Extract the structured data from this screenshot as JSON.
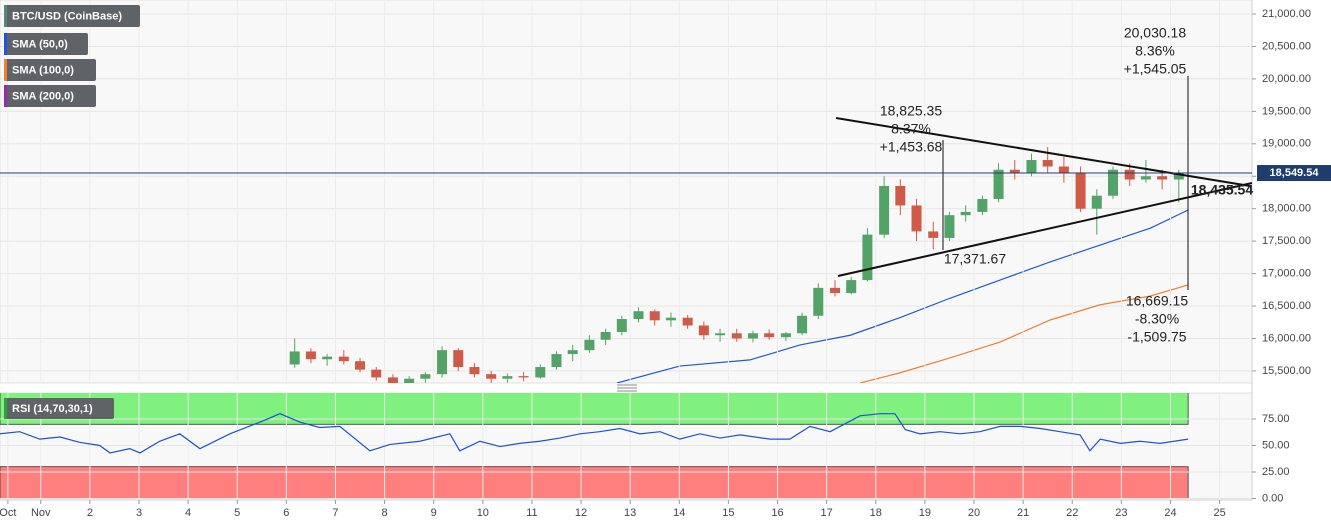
{
  "chart_data": [
    {
      "type": "candlestick",
      "name": "BTC/USD (CoinBase)",
      "legend_color": "#4e8b78",
      "up_color": "#53a367",
      "down_color": "#d05a48",
      "x": [
        6.17,
        6.5,
        6.83,
        7.17,
        7.5,
        7.83,
        8.17,
        8.5,
        8.83,
        9.17,
        9.5,
        9.83,
        10.17,
        10.5,
        10.83,
        11.17,
        11.5,
        11.83,
        12.17,
        12.5,
        12.83,
        13.17,
        13.5,
        13.83,
        14.17,
        14.5,
        14.83,
        15.17,
        15.5,
        15.83,
        16.17,
        16.5,
        16.83,
        17.17,
        17.5,
        17.83,
        18.17,
        18.5,
        18.83,
        19.17,
        19.5,
        19.83,
        20.17,
        20.5,
        20.83,
        21.17,
        21.5,
        21.83,
        22.17,
        22.5,
        22.83,
        23.17,
        23.5,
        23.83,
        24.17
      ],
      "open": [
        15600,
        15800,
        15680,
        15720,
        15650,
        15520,
        15400,
        15300,
        15380,
        15450,
        15820,
        15560,
        15450,
        15380,
        15420,
        15400,
        15560,
        15760,
        15820,
        15980,
        16100,
        16300,
        16420,
        16280,
        16320,
        16200,
        16050,
        16080,
        16000,
        16080,
        16020,
        16080,
        16350,
        16780,
        16700,
        16900,
        17600,
        18350,
        18050,
        17650,
        17550,
        17900,
        17950,
        18150,
        18600,
        18550,
        18750,
        18650,
        18550,
        18000,
        18200,
        18600,
        18450,
        18500,
        18450
      ],
      "high": [
        16000,
        15850,
        15760,
        15820,
        15700,
        15560,
        15450,
        15420,
        15480,
        15880,
        15850,
        15620,
        15500,
        15460,
        15480,
        15600,
        15800,
        15900,
        16050,
        16150,
        16350,
        16480,
        16450,
        16400,
        16360,
        16260,
        16150,
        16150,
        16120,
        16140,
        16100,
        16400,
        16850,
        16900,
        16950,
        17700,
        18500,
        18450,
        18150,
        17800,
        17950,
        18050,
        18200,
        18700,
        18750,
        18850,
        18950,
        18800,
        18650,
        18300,
        18650,
        18700,
        18750,
        18600,
        18600
      ],
      "low": [
        15550,
        15620,
        15580,
        15600,
        15480,
        15350,
        15250,
        15220,
        15320,
        15400,
        15500,
        15400,
        15300,
        15320,
        15340,
        15380,
        15520,
        15650,
        15780,
        15900,
        16050,
        16250,
        16200,
        16180,
        16150,
        15980,
        15950,
        15950,
        15940,
        15980,
        15960,
        16050,
        16300,
        16650,
        16680,
        16880,
        17550,
        17900,
        17500,
        17371.67,
        17500,
        17800,
        17900,
        18100,
        18450,
        18500,
        18550,
        18400,
        17950,
        17600,
        18150,
        18350,
        18400,
        18300,
        18100
      ],
      "close": [
        15800,
        15680,
        15720,
        15650,
        15520,
        15400,
        15300,
        15380,
        15450,
        15820,
        15560,
        15450,
        15380,
        15420,
        15400,
        15560,
        15760,
        15820,
        15980,
        16100,
        16300,
        16420,
        16280,
        16320,
        16200,
        16050,
        16080,
        16000,
        16080,
        16020,
        16080,
        16350,
        16780,
        16700,
        16900,
        17600,
        18350,
        18050,
        17650,
        17550,
        17900,
        17950,
        18150,
        18600,
        18550,
        18750,
        18650,
        18550,
        18000,
        18200,
        18600,
        18450,
        18500,
        18450,
        18549.54
      ],
      "overlays": [
        {
          "name": "SMA (50,0)",
          "color": "#2157d9",
          "x": [
            12.73,
            14.01,
            15.44,
            16.46,
            17.48,
            18.49,
            19.51,
            20.53,
            21.55,
            22.57,
            23.59,
            24.36
          ],
          "values": [
            15314,
            15575,
            15670,
            15900,
            16050,
            16320,
            16620,
            16900,
            17180,
            17440,
            17700,
            17980
          ]
        },
        {
          "name": "SMA (100,0)",
          "color": "#f0802d",
          "x": [
            17.68,
            18.49,
            19.51,
            20.53,
            21.55,
            22.57,
            23.59,
            24.36
          ],
          "values": [
            15314,
            15470,
            15700,
            15945,
            16285,
            16520,
            16655,
            16825
          ]
        },
        {
          "name": "SMA (200,0)",
          "color": "#9c27b0"
        }
      ],
      "price_line": {
        "value": 18549.54,
        "label": "18,549.54",
        "color": "#1f3c6e"
      },
      "annotations": [
        "20,030.18",
        "8.36%",
        "+1,545.05",
        "18,825.35",
        "8.37%",
        "+1,453.68",
        "17,371.67",
        "16,669.15",
        "-8.30%",
        "-1,509.75",
        "18,435.54"
      ],
      "xlim": [
        0.17,
        25.66
      ],
      "ylim": [
        15314,
        21216
      ],
      "yticks": [
        {
          "value": 15500,
          "label": "15,500.00"
        },
        {
          "value": 16000,
          "label": "16,000.00"
        },
        {
          "value": 16500,
          "label": "16,500.00"
        },
        {
          "value": 17000,
          "label": "17,000.00"
        },
        {
          "value": 17500,
          "label": "17,500.00"
        },
        {
          "value": 18000,
          "label": "18,000.00"
        },
        {
          "value": 18500,
          "label": "18,500.00"
        },
        {
          "value": 19000,
          "label": "19,000.00"
        },
        {
          "value": 19500,
          "label": "19,500.00"
        },
        {
          "value": 20000,
          "label": "20,000.00"
        },
        {
          "value": 20500,
          "label": "20,500.00"
        },
        {
          "value": 21000,
          "label": "21,000.00"
        }
      ],
      "grid": true
    },
    {
      "type": "line",
      "series": [
        {
          "name": "RSI (14,70,30,1)",
          "color": "#1e4fd8",
          "legend_color": "#2e9e3e",
          "x": [
            0.16,
            0.57,
            0.98,
            1.39,
            1.79,
            2.2,
            2.41,
            2.81,
            3.02,
            3.42,
            3.83,
            4.24,
            4.85,
            5.46,
            5.87,
            6.28,
            6.68,
            7.09,
            7.7,
            8.11,
            8.72,
            9.33,
            9.53,
            9.94,
            10.35,
            10.75,
            11.16,
            11.57,
            11.98,
            12.38,
            12.79,
            13.2,
            13.61,
            14.01,
            14.42,
            14.83,
            15.24,
            15.85,
            16.25,
            16.66,
            17.07,
            17.68,
            18.09,
            18.39,
            18.6,
            18.9,
            19.31,
            19.72,
            20.12,
            20.53,
            20.94,
            21.35,
            21.75,
            22.16,
            22.36,
            22.57,
            22.98,
            23.38,
            23.79,
            24.36
          ],
          "values": [
            61,
            63,
            56,
            58,
            53,
            50,
            43,
            47,
            43,
            54,
            61,
            47,
            61,
            72,
            80,
            72,
            67,
            68,
            45,
            51,
            54,
            61,
            45,
            54,
            49,
            52,
            54,
            57,
            61,
            63,
            66,
            61,
            63,
            56,
            61,
            57,
            60,
            56,
            56,
            68,
            63,
            78,
            80,
            80,
            65,
            61,
            63,
            61,
            63,
            68,
            68,
            66,
            63,
            60,
            45,
            56,
            52,
            54,
            52,
            56
          ]
        }
      ],
      "bands": [
        {
          "from": 70,
          "to": 100,
          "color": "#80f07e"
        },
        {
          "from": 0,
          "to": 30,
          "color": "#ff7f7f"
        }
      ],
      "band_end": 24.36,
      "xlim": [
        0.17,
        25.66
      ],
      "ylim": [
        -1.4,
        99.5
      ],
      "yticks": [
        {
          "value": 0,
          "label": "0.00"
        },
        {
          "value": 25,
          "label": "25.00"
        },
        {
          "value": 50,
          "label": "50.00"
        },
        {
          "value": 75,
          "label": "75.00"
        }
      ],
      "xticks": [
        {
          "value": 0.33,
          "label": "Oct"
        },
        {
          "value": 1,
          "label": "Nov"
        },
        2,
        3,
        4,
        5,
        6,
        7,
        8,
        9,
        10,
        11,
        12,
        13,
        14,
        15,
        16,
        17,
        18,
        19,
        20,
        21,
        22,
        23,
        24,
        25
      ],
      "grid": true
    }
  ]
}
